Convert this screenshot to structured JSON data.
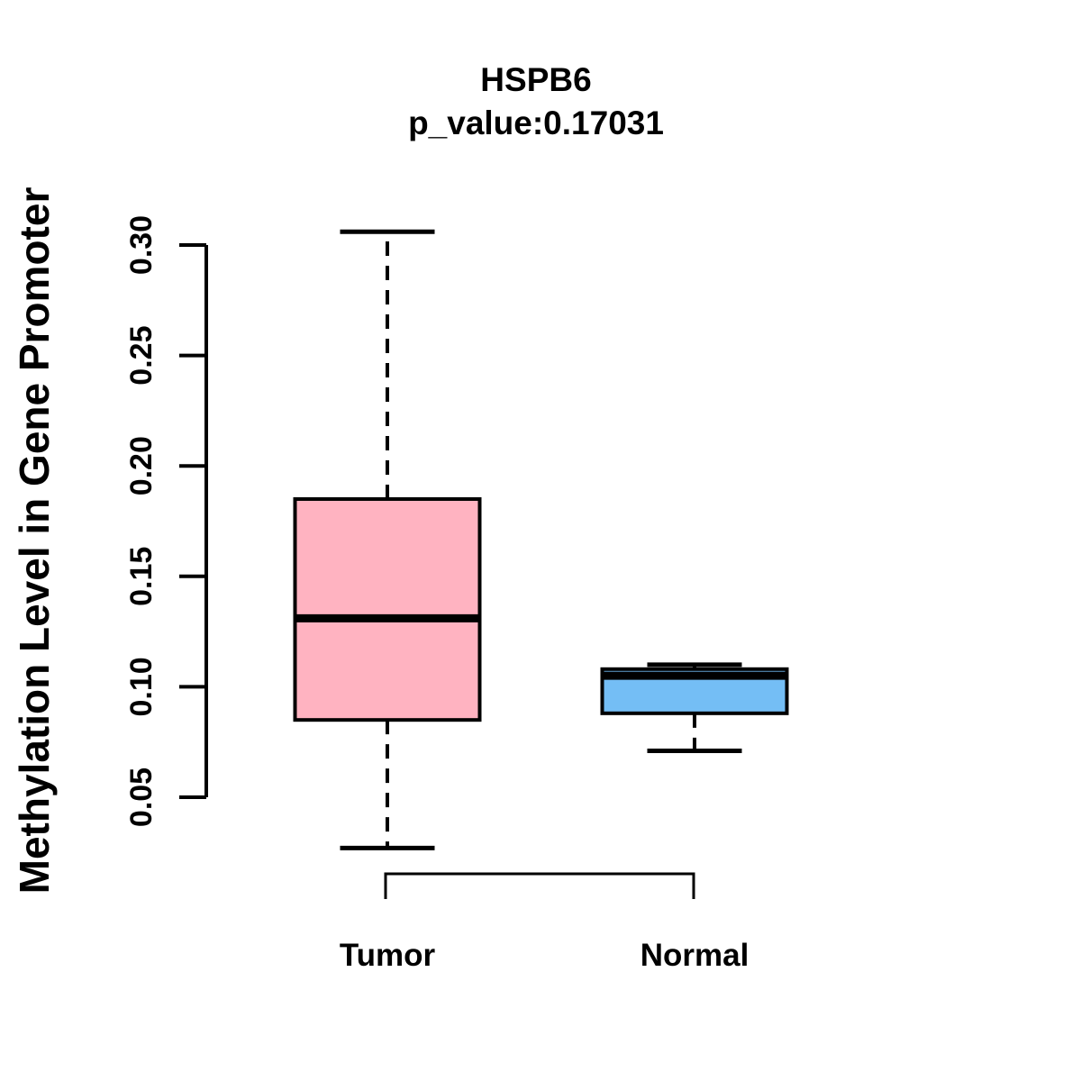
{
  "chart_data": {
    "type": "boxplot",
    "title": "HSPB6",
    "subtitle": "p_value:0.17031",
    "ylabel": "Methylation Level in Gene Promoter",
    "xlabel": "",
    "categories": [
      "Tumor",
      "Normal"
    ],
    "y_ticks": [
      0.05,
      0.1,
      0.15,
      0.2,
      0.25,
      0.3
    ],
    "ylim": [
      0.05,
      0.3
    ],
    "grid": false,
    "colors": {
      "tumor_fill": "#FFB3C1",
      "normal_fill": "#74BEF5",
      "stroke": "#000000",
      "background": "#FFFFFF"
    },
    "series": [
      {
        "name": "Tumor",
        "fill_color": "#FFB3C1",
        "whisker_low": 0.027,
        "q1": 0.085,
        "median": 0.131,
        "q3": 0.185,
        "whisker_high": 0.306
      },
      {
        "name": "Normal",
        "fill_color": "#74BEF5",
        "whisker_low": 0.071,
        "q1": 0.088,
        "median": 0.105,
        "q3": 0.108,
        "whisker_high": 0.11
      }
    ],
    "comparison_bracket": {
      "from": "Tumor",
      "to": "Normal"
    }
  }
}
